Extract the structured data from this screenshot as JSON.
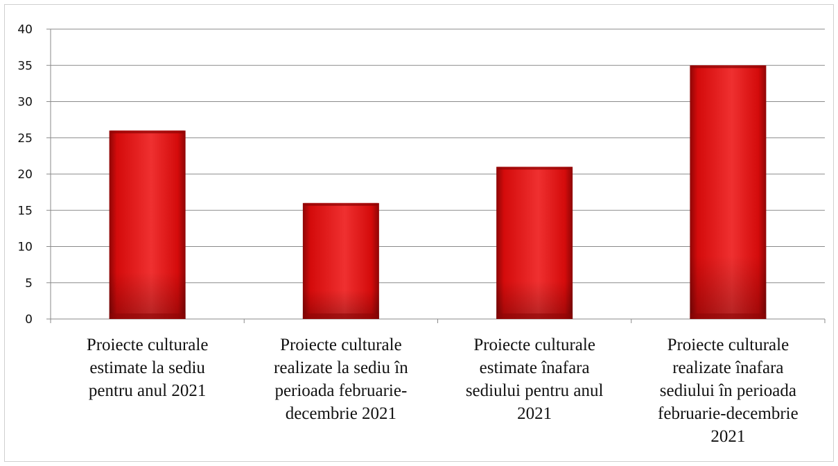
{
  "chart_data": {
    "type": "bar",
    "title": "",
    "xlabel": "",
    "ylabel": "",
    "categories": [
      [
        "Proiecte culturale",
        "estimate la sediu",
        "pentru anul 2021"
      ],
      [
        "Proiecte culturale",
        "realizate la sediu în",
        "perioada februarie-",
        "decembrie 2021"
      ],
      [
        "Proiecte culturale",
        "estimate înafara",
        "sediului pentru anul",
        "2021"
      ],
      [
        "Proiecte culturale",
        "realizate înafara",
        "sediului în perioada",
        "februarie-decembrie",
        "2021"
      ]
    ],
    "values": [
      26,
      16,
      21,
      35
    ],
    "ylim": [
      0,
      40
    ],
    "yticks": [
      "0",
      "5",
      "10",
      "15",
      "20",
      "25",
      "30",
      "35",
      "40"
    ],
    "grid": true,
    "legend": "none",
    "bar_color": "#d40b0b",
    "bar_dark": "#8e0606",
    "bar_light": "#ef3030"
  }
}
